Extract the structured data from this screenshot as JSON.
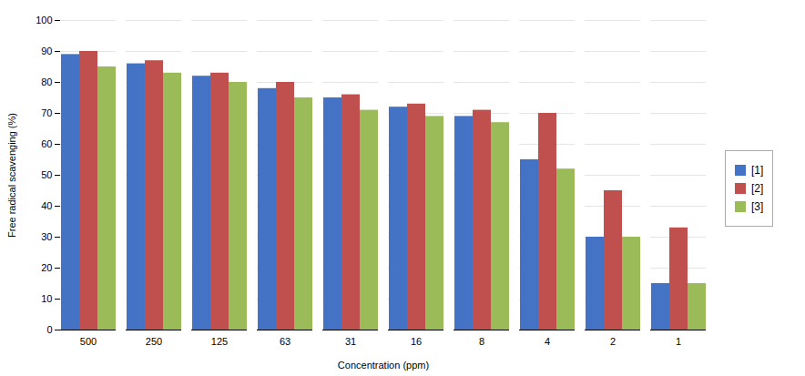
{
  "chart_data": {
    "type": "bar",
    "categories": [
      "500",
      "250",
      "125",
      "63",
      "31",
      "16",
      "8",
      "4",
      "2",
      "1"
    ],
    "series": [
      {
        "name": "[1]",
        "color": "#4472C4",
        "values": [
          89,
          86,
          82,
          78,
          75,
          72,
          69,
          55,
          30,
          15
        ]
      },
      {
        "name": "[2]",
        "color": "#C0504D",
        "values": [
          90,
          87,
          83,
          80,
          76,
          73,
          71,
          70,
          45,
          33
        ]
      },
      {
        "name": "[3]",
        "color": "#9BBB59",
        "values": [
          85,
          83,
          80,
          75,
          71,
          69,
          67,
          52,
          30,
          15
        ]
      }
    ],
    "xlabel": "Concentration (ppm)",
    "ylabel": "Free radical scavenging (%)",
    "ylim": [
      0,
      100
    ],
    "yticks": [
      0,
      10,
      20,
      30,
      40,
      50,
      60,
      70,
      80,
      90,
      100
    ],
    "grid": true,
    "legend": "right"
  }
}
